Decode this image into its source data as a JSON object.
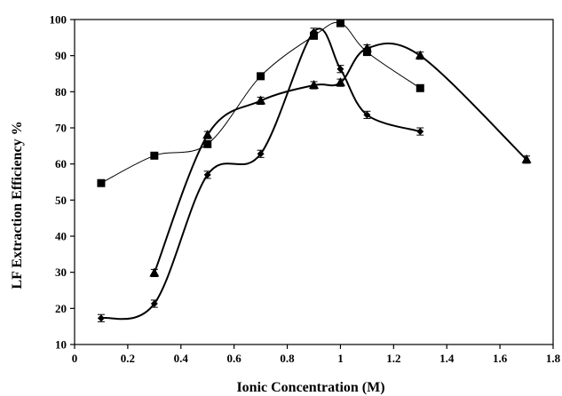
{
  "chart_data": {
    "type": "line",
    "title": "",
    "xlabel": "Ionic Concentration (M)",
    "ylabel": "LF Extraction Efficiency %",
    "xlim": [
      0,
      1.8
    ],
    "ylim": [
      10,
      100
    ],
    "x_ticks": [
      "0",
      "0.2",
      "0.4",
      "0.6",
      "0.8",
      "1",
      "1.2",
      "1.4",
      "1.6",
      "1.8"
    ],
    "y_ticks": [
      "10",
      "20",
      "30",
      "40",
      "50",
      "60",
      "70",
      "80",
      "90",
      "100"
    ],
    "grid": false,
    "legend": "none",
    "series": [
      {
        "marker": "diamond",
        "color": "#000000",
        "x": [
          0.1,
          0.3,
          0.5,
          0.7,
          0.9,
          1.0,
          1.1,
          1.3
        ],
        "y": [
          17.3,
          21.3,
          57.0,
          62.8,
          96.6,
          86.3,
          73.6,
          69.0
        ],
        "err": [
          1.0,
          1.0,
          1.0,
          1.0,
          1.0,
          1.0,
          1.0,
          1.0
        ]
      },
      {
        "marker": "square",
        "color": "#000000",
        "x": [
          0.1,
          0.3,
          0.5,
          0.7,
          0.9,
          1.0,
          1.1,
          1.3
        ],
        "y": [
          54.7,
          62.3,
          65.5,
          84.3,
          95.5,
          99.0,
          91.0,
          81.0
        ],
        "err": [
          0,
          0,
          0,
          0,
          0,
          0,
          0,
          0
        ]
      },
      {
        "marker": "triangle",
        "color": "#000000",
        "x": [
          0.3,
          0.5,
          0.7,
          0.9,
          1.0,
          1.1,
          1.3,
          1.7
        ],
        "y": [
          29.8,
          68.0,
          77.5,
          81.8,
          82.5,
          92.0,
          90.0,
          61.2
        ],
        "err": [
          1.0,
          1.0,
          1.0,
          1.0,
          1.0,
          1.0,
          1.0,
          1.0
        ]
      }
    ]
  }
}
